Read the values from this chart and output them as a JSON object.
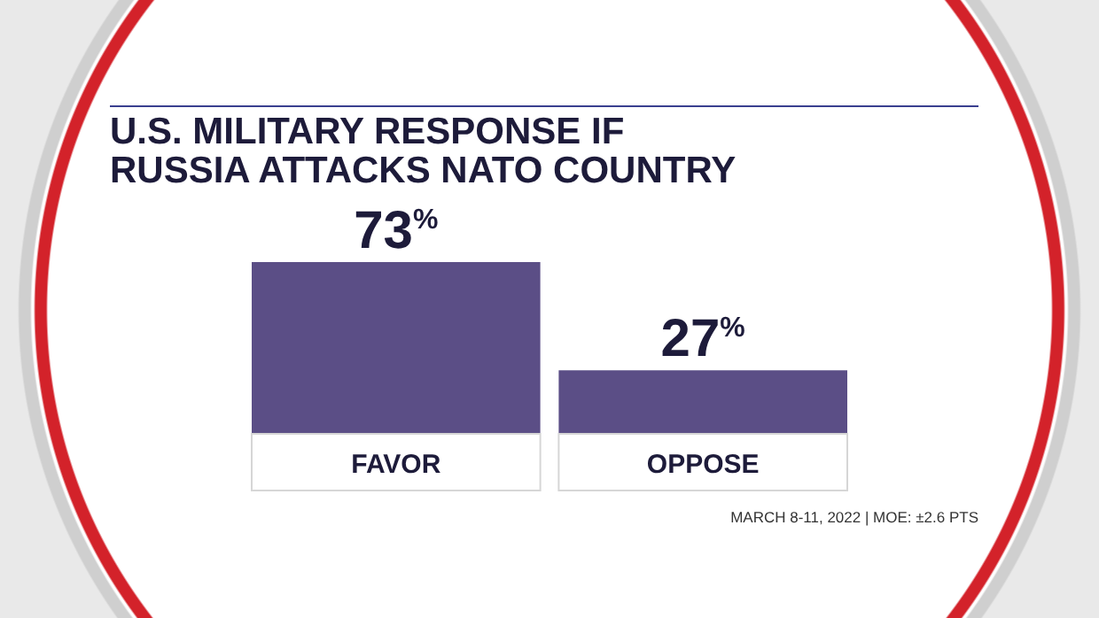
{
  "chart_data": {
    "type": "bar",
    "title": "U.S. MILITARY RESPONSE IF RUSSIA ATTACKS NATO COUNTRY",
    "categories": [
      "FAVOR",
      "OPPOSE"
    ],
    "values": [
      73,
      27
    ],
    "value_labels": [
      "73$^{%}$",
      "27$^{%}$"
    ],
    "color": "#5b4e86",
    "annotations": [
      "MARCH 8-11, 2022 | MOE: ±2.6 PTS"
    ]
  }
}
